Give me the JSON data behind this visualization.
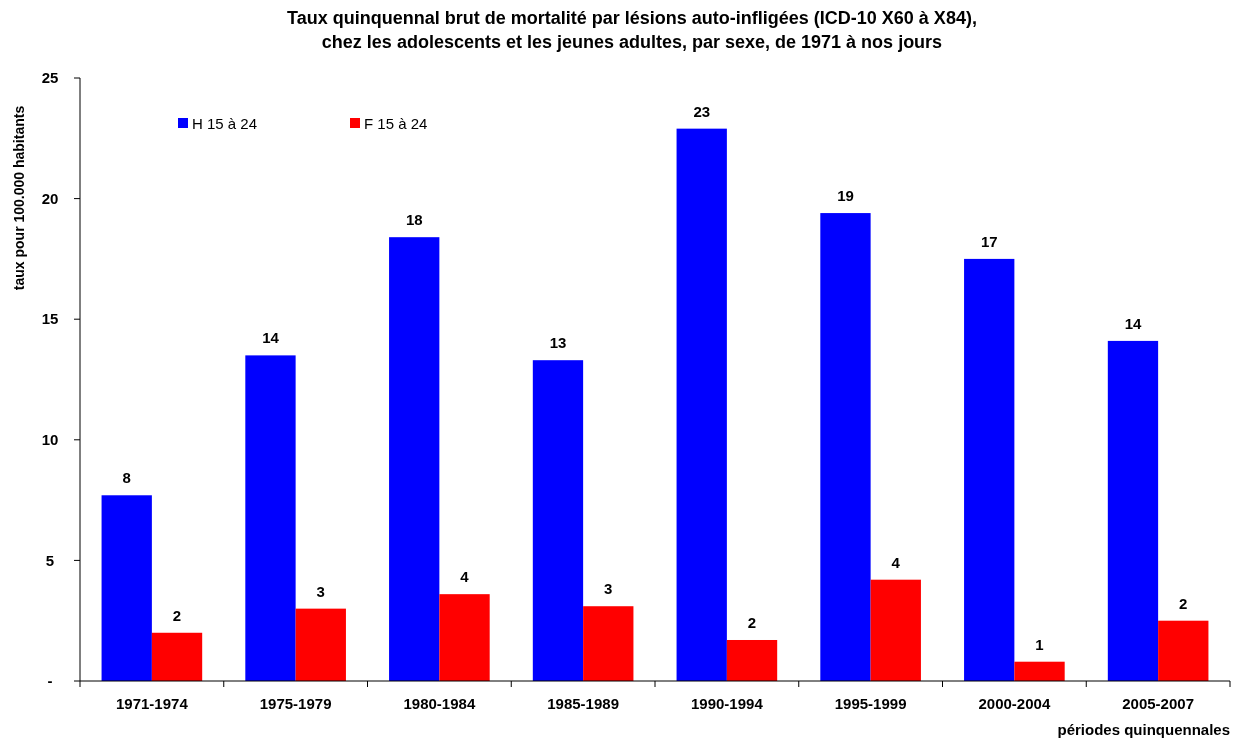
{
  "chart_data": {
    "type": "bar",
    "title": "Taux quinquennal brut de mortalité par lésions auto-infligées (ICD-10 X60 à X84),\nchez les adolescents et les jeunes adultes, par sexe, de 1971 à nos jours",
    "xlabel": "périodes quinquennales",
    "ylabel": "taux pour 100.000 habitants",
    "categories": [
      "1971-1974",
      "1975-1979",
      "1980-1984",
      "1985-1989",
      "1990-1994",
      "1995-1999",
      "2000-2004",
      "2005-2007"
    ],
    "series": [
      {
        "name": "H 15 à 24",
        "color": "#0000ff",
        "values": [
          7.7,
          13.5,
          18.4,
          13.3,
          22.9,
          19.4,
          17.5,
          14.1
        ],
        "value_labels": [
          "8",
          "14",
          "18",
          "13",
          "23",
          "19",
          "17",
          "14"
        ]
      },
      {
        "name": "F 15 à 24",
        "color": "#ff0000",
        "values": [
          2.0,
          3.0,
          3.6,
          3.1,
          1.7,
          4.2,
          0.8,
          2.5
        ],
        "value_labels": [
          "2",
          "3",
          "4",
          "3",
          "2",
          "4",
          "1",
          "2"
        ]
      }
    ],
    "ylim": [
      0,
      25
    ],
    "yticks": [
      {
        "value": 0,
        "label": "-"
      },
      5,
      10,
      15,
      20,
      25
    ],
    "grid": false,
    "legend": "top left"
  }
}
